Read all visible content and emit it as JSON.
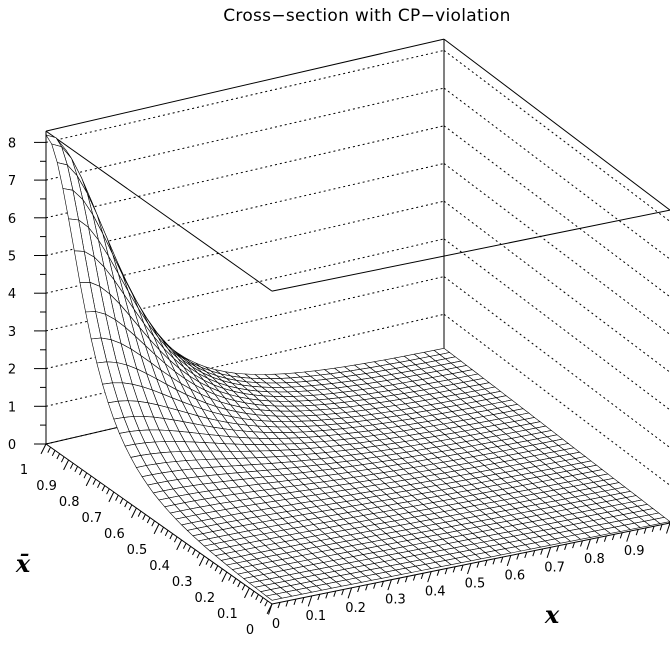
{
  "chart_data": {
    "type": "surface3d",
    "title": "Cross−section with CP−violation",
    "xlabel": "x",
    "ylabel": "x̄",
    "zlabel": "",
    "xlim": [
      0,
      1
    ],
    "ylim": [
      0,
      1
    ],
    "zlim": [
      0,
      8.3
    ],
    "x_ticks": [
      "0",
      "0.1",
      "0.2",
      "0.3",
      "0.4",
      "0.5",
      "0.6",
      "0.7",
      "0.8",
      "0.9"
    ],
    "y_ticks": [
      "0",
      "0.1",
      "0.2",
      "0.3",
      "0.4",
      "0.5",
      "0.6",
      "0.7",
      "0.8",
      "0.9",
      "1"
    ],
    "z_ticks": [
      "0",
      "1",
      "2",
      "3",
      "4",
      "5",
      "6",
      "7",
      "8"
    ],
    "peak": {
      "x": 0.0,
      "y": 1.0,
      "z": 8.2
    },
    "grid_lines": 40,
    "gridlines": true,
    "colors": {
      "surface_fill": "#ffffff",
      "mesh": "#000000",
      "grid": "#000000"
    }
  }
}
